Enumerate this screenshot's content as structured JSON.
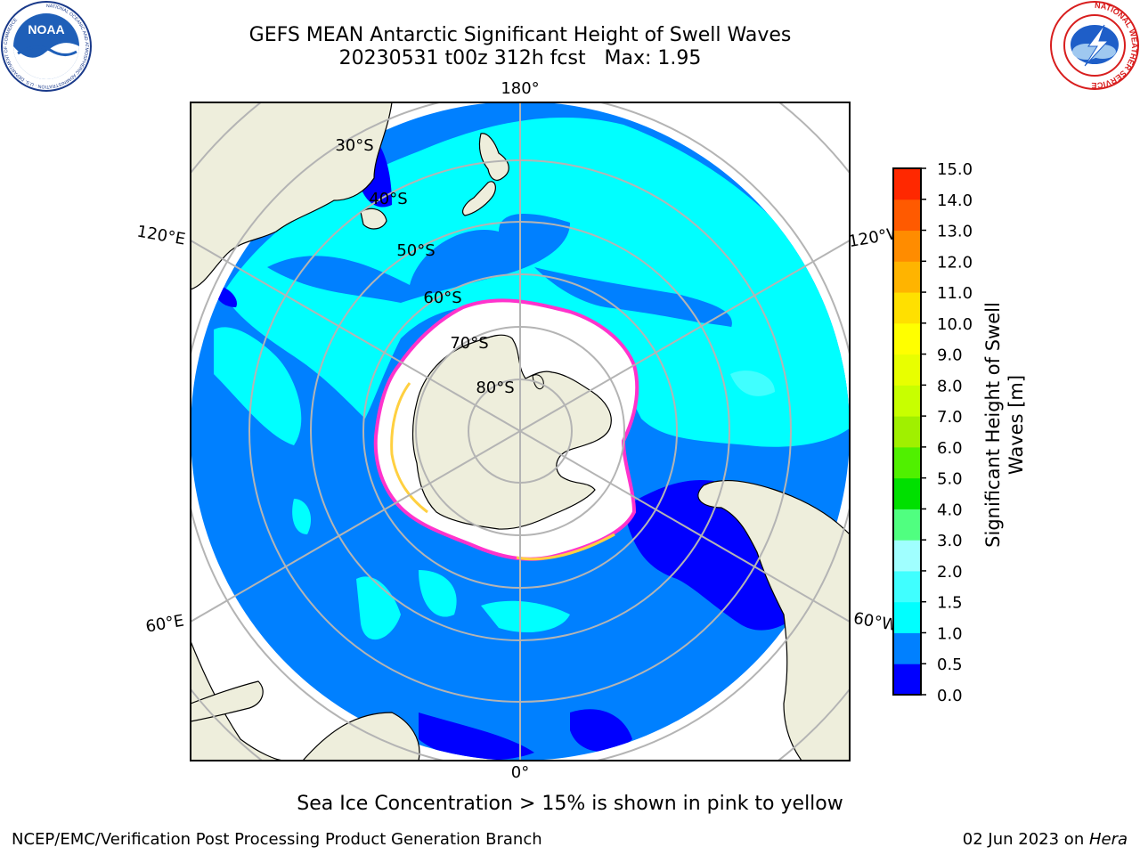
{
  "title": {
    "line1": "GEFS MEAN Antarctic Significant Height of Swell Waves",
    "line2": "20230531 t00z 312h fcst   Max: 1.95"
  },
  "logos": {
    "left": {
      "icon": "noaa-logo",
      "text": "NOAA",
      "ring_text": "NATIONAL OCEANIC AND ATMOSPHERIC ADMINISTRATION · U.S. DEPARTMENT OF COMMERCE"
    },
    "right": {
      "icon": "nws-logo",
      "ring_text": "NATIONAL WEATHER SERVICE"
    }
  },
  "map": {
    "projection": "south-polar-stereographic",
    "longitude_labels": {
      "top": "180°",
      "bottom": "0°",
      "upper_left": "120°E",
      "lower_left": "60°E",
      "upper_right": "120°W",
      "lower_right": "60°W"
    },
    "latitude_labels": [
      "30°S",
      "40°S",
      "50°S",
      "60°S",
      "70°S",
      "80°S"
    ],
    "colors": {
      "ocean": "#0080ff",
      "land": "#eeeedc",
      "ice": "#ffffff",
      "ice_edge": "#ff33cc",
      "coast": "#000000",
      "grid": "#b4b4b4"
    }
  },
  "colorbar": {
    "label": "Significant Height of Swell Waves [m]",
    "ticks": [
      "0.0",
      "0.5",
      "1.0",
      "1.5",
      "2.0",
      "3.0",
      "4.0",
      "5.0",
      "6.0",
      "7.0",
      "8.0",
      "9.0",
      "10.0",
      "11.0",
      "12.0",
      "13.0",
      "14.0",
      "15.0"
    ],
    "colors": [
      "#0000ff",
      "#0080ff",
      "#00ffff",
      "#40ffff",
      "#a0ffff",
      "#50ff80",
      "#00e000",
      "#50f000",
      "#a0f000",
      "#c8ff00",
      "#e8ff00",
      "#ffff00",
      "#ffe000",
      "#ffb400",
      "#ff8c00",
      "#ff5a00",
      "#ff2800"
    ]
  },
  "chart_data": {
    "type": "heatmap",
    "title": "GEFS MEAN Antarctic Significant Height of Swell Waves",
    "subtitle": "20230531 t00z 312h fcst   Max: 1.95",
    "field": "Significant Height of Swell Waves",
    "units": "m",
    "max_value": 1.95,
    "scale_range": [
      0.0,
      15.0
    ],
    "levels": [
      0.0,
      0.5,
      1.0,
      1.5,
      2.0,
      3.0,
      4.0,
      5.0,
      6.0,
      7.0,
      8.0,
      9.0,
      10.0,
      11.0,
      12.0,
      13.0,
      14.0,
      15.0
    ],
    "overlay": "Sea Ice Concentration > 15%"
  },
  "note": "Sea Ice Concentration > 15% is shown in pink to yellow",
  "footer": {
    "left": "NCEP/EMC/Verification Post Processing Product Generation Branch",
    "right_date": "02 Jun 2023 on ",
    "right_host": "Hera"
  }
}
